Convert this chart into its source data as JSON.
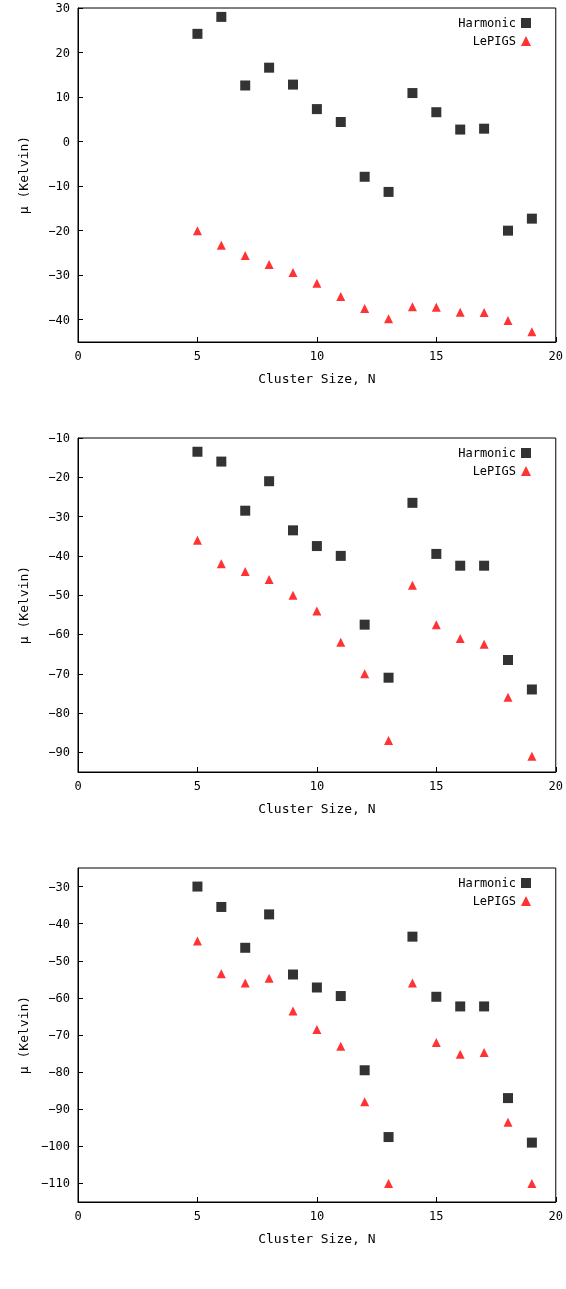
{
  "chart_data": [
    {
      "type": "scatter",
      "xlabel": "Cluster Size, N",
      "ylabel": "μ (Kelvin)",
      "xlim": [
        0,
        20
      ],
      "xticks": [
        0,
        5,
        10,
        15,
        20
      ],
      "ylim": [
        -45,
        30
      ],
      "yticks": [
        -40,
        -30,
        -20,
        -10,
        0,
        10,
        20,
        30
      ],
      "grid": false,
      "legend": "top right",
      "x": [
        5,
        6,
        7,
        8,
        9,
        10,
        11,
        12,
        13,
        14,
        15,
        16,
        17,
        18,
        19
      ],
      "series": [
        {
          "name": "Harmonic",
          "color": "#000000",
          "marker": "square",
          "values": [
            24.2,
            28,
            12.6,
            16.6,
            12.8,
            7.3,
            4.4,
            -7.9,
            -11.3,
            10.9,
            6.6,
            2.7,
            2.9,
            -20,
            -17.3
          ]
        },
        {
          "name": "LePIGS",
          "color": "#ff0000",
          "marker": "triangle",
          "values": [
            -20,
            -23.3,
            -25.6,
            -27.6,
            -29.4,
            -31.8,
            -34.8,
            -37.5,
            -39.8,
            -37.1,
            -37.2,
            -38.3,
            -38.4,
            -40.2,
            -42.7
          ]
        }
      ]
    },
    {
      "type": "scatter",
      "xlabel": "Cluster Size, N",
      "ylabel": "μ (Kelvin)",
      "xlim": [
        0,
        20
      ],
      "xticks": [
        0,
        5,
        10,
        15,
        20
      ],
      "ylim": [
        -95,
        -10
      ],
      "yticks": [
        -90,
        -80,
        -70,
        -60,
        -50,
        -40,
        -30,
        -20,
        -10
      ],
      "grid": false,
      "legend": "top right",
      "x": [
        5,
        6,
        7,
        8,
        9,
        10,
        11,
        12,
        13,
        14,
        15,
        16,
        17,
        18,
        19
      ],
      "series": [
        {
          "name": "Harmonic",
          "color": "#000000",
          "marker": "square",
          "values": [
            -13.5,
            -16,
            -28.5,
            -21,
            -33.5,
            -37.5,
            -40,
            -57.5,
            -71,
            -26.5,
            -39.5,
            -42.5,
            -42.5,
            -66.5,
            -74
          ]
        },
        {
          "name": "LePIGS",
          "color": "#ff0000",
          "marker": "triangle",
          "values": [
            -36,
            -42,
            -44,
            -46,
            -50,
            -54,
            -62,
            -70,
            -87,
            -47.5,
            -57.5,
            -61,
            -62.5,
            -76,
            -91
          ]
        }
      ]
    },
    {
      "type": "scatter",
      "xlabel": "Cluster Size, N",
      "ylabel": "μ (Kelvin)",
      "xlim": [
        0,
        20
      ],
      "xticks": [
        0,
        5,
        10,
        15,
        20
      ],
      "ylim": [
        -115,
        -25
      ],
      "yticks": [
        -110,
        -100,
        -90,
        -80,
        -70,
        -60,
        -50,
        -40,
        -30
      ],
      "grid": false,
      "legend": "top right",
      "x": [
        5,
        6,
        7,
        8,
        9,
        10,
        11,
        12,
        13,
        14,
        15,
        16,
        17,
        18,
        19
      ],
      "series": [
        {
          "name": "Harmonic",
          "color": "#000000",
          "marker": "square",
          "values": [
            -30,
            -35.5,
            -46.5,
            -37.5,
            -53.7,
            -57.2,
            -59.5,
            -79.5,
            -97.5,
            -43.5,
            -59.7,
            -62.3,
            -62.3,
            -87,
            -99
          ]
        },
        {
          "name": "LePIGS",
          "color": "#ff0000",
          "marker": "triangle",
          "values": [
            -44.7,
            -53.5,
            -56,
            -54.7,
            -63.5,
            -68.5,
            -73,
            -88,
            -110,
            -56,
            -72,
            -75.2,
            -74.7,
            -93.5,
            -110
          ]
        }
      ]
    }
  ]
}
